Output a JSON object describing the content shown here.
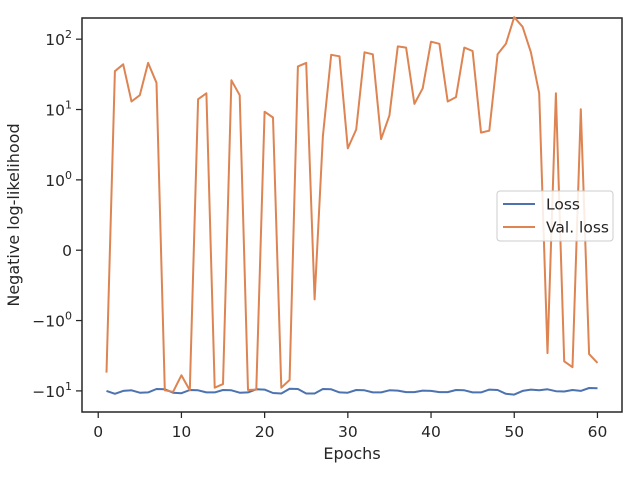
{
  "chart_data": {
    "type": "line",
    "xlabel": "Epochs",
    "ylabel": "Negative log-likelihood",
    "y_scale": "symlog",
    "xlim": [
      -1.95,
      62.95
    ],
    "x_ticks": [
      0,
      10,
      20,
      30,
      40,
      50,
      60
    ],
    "y_ticks": [
      {
        "value": -10,
        "label": "−10",
        "sup": "1"
      },
      {
        "value": -1,
        "label": "−10",
        "sup": "0"
      },
      {
        "value": 0,
        "label": "0",
        "sup": ""
      },
      {
        "value": 1,
        "label": "10",
        "sup": "0"
      },
      {
        "value": 10,
        "label": "10",
        "sup": "1"
      },
      {
        "value": 100,
        "label": "10",
        "sup": "2"
      }
    ],
    "grid": false,
    "legend_position": "center-right",
    "x": [
      1,
      2,
      3,
      4,
      5,
      6,
      7,
      8,
      9,
      10,
      11,
      12,
      13,
      14,
      15,
      16,
      17,
      18,
      19,
      20,
      21,
      22,
      23,
      24,
      25,
      26,
      27,
      28,
      29,
      30,
      31,
      32,
      33,
      34,
      35,
      36,
      37,
      38,
      39,
      40,
      41,
      42,
      43,
      44,
      45,
      46,
      47,
      48,
      49,
      50,
      51,
      52,
      53,
      54,
      55,
      56,
      57,
      58,
      59,
      60
    ],
    "series": [
      {
        "name": "Loss",
        "color": "#4c72b0",
        "values": [
          -10,
          -11,
          -10,
          -9.8,
          -10.6,
          -10.5,
          -9.4,
          -9.5,
          -10.6,
          -10.8,
          -9.7,
          -9.8,
          -10.5,
          -10.5,
          -9.7,
          -9.8,
          -10.6,
          -10.5,
          -9.5,
          -9.6,
          -10.7,
          -10.9,
          -9.3,
          -9.4,
          -10.9,
          -10.9,
          -9.4,
          -9.5,
          -10.5,
          -10.6,
          -9.7,
          -9.8,
          -10.5,
          -10.5,
          -9.8,
          -9.9,
          -10.4,
          -10.4,
          -9.9,
          -10.0,
          -10.4,
          -10.4,
          -9.7,
          -9.8,
          -10.5,
          -10.5,
          -9.6,
          -9.7,
          -11.0,
          -11.3,
          -10.0,
          -9.6,
          -9.8,
          -9.5,
          -10.1,
          -10.2,
          -9.7,
          -10.0,
          -9.1,
          -9.2
        ]
      },
      {
        "name": "Val. loss",
        "color": "#dd8452",
        "values": [
          -5.5,
          35,
          44,
          13,
          16,
          46,
          24,
          -9.8,
          -10.3,
          -6.0,
          -9.8,
          14,
          17,
          -9.0,
          -8.0,
          26,
          16,
          -9.7,
          -9.6,
          9.3,
          7.7,
          -9.0,
          -7.0,
          41,
          46,
          -0.7,
          4.2,
          60,
          57,
          2.8,
          5.2,
          65,
          61,
          3.8,
          8.2,
          79,
          76,
          12,
          20,
          92,
          86,
          13,
          15,
          76,
          68,
          4.7,
          5.0,
          61,
          86,
          205,
          150,
          65,
          17,
          -2.9,
          17,
          -3.8,
          -4.6,
          10.1,
          -3.0,
          -4.0
        ]
      }
    ]
  }
}
